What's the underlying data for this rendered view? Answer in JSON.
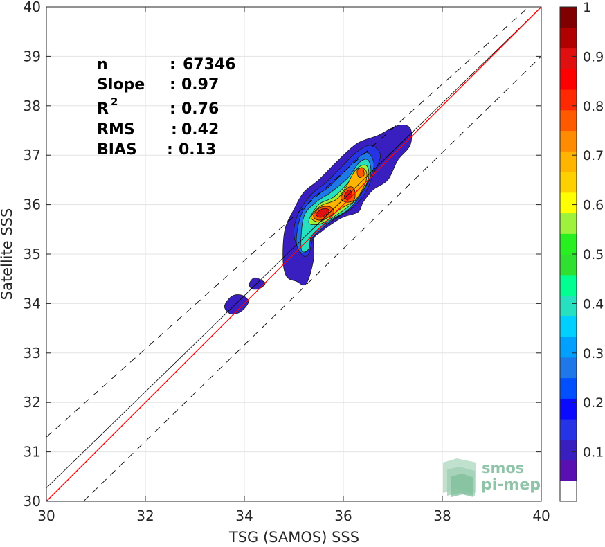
{
  "chart_data": {
    "type": "heatmap",
    "subtype": "filled-contour density scatter",
    "title": "",
    "xlabel": "TSG (SAMOS) SSS",
    "ylabel": "Satellite SSS",
    "xlim": [
      30,
      40
    ],
    "ylim": [
      30,
      40
    ],
    "xticks": [
      "30",
      "32",
      "34",
      "36",
      "38",
      "40"
    ],
    "yticks": [
      "30",
      "31",
      "32",
      "33",
      "34",
      "35",
      "36",
      "37",
      "38",
      "39",
      "40"
    ],
    "grid": true,
    "stats": [
      {
        "label": "n",
        "sep": ":",
        "value": "67346"
      },
      {
        "label": "Slope",
        "sep": ":",
        "value": "0.97"
      },
      {
        "label": "R",
        "sup": "2",
        "sep": ":",
        "value": "0.76"
      },
      {
        "label": "RMS",
        "sep": ":",
        "value": "0.42"
      },
      {
        "label": "BIAS",
        "sep": ":",
        "value": "0.13"
      }
    ],
    "lines": {
      "identity": {
        "color": "#ff0000",
        "x": [
          30,
          40
        ],
        "y": [
          30,
          40
        ]
      },
      "regression": {
        "color": "#000000",
        "x": [
          30,
          40
        ],
        "y": [
          30.27,
          40
        ]
      },
      "upper_bound": {
        "color": "#000000",
        "style": "dashed",
        "x": [
          30,
          39.75
        ],
        "y": [
          31.3,
          40
        ]
      },
      "lower_bound": {
        "color": "#000000",
        "style": "dashed",
        "x": [
          30.75,
          40
        ],
        "y": [
          30,
          39
        ]
      }
    },
    "density_levels": [
      {
        "level": 0.05,
        "color": "#3a1fc0",
        "regions": [
          [
            [
              34.85,
              34.55
            ],
            [
              34.78,
              34.9
            ],
            [
              34.82,
              35.5
            ],
            [
              35.0,
              35.9
            ],
            [
              35.2,
              36.25
            ],
            [
              35.5,
              36.5
            ],
            [
              35.95,
              36.95
            ],
            [
              36.3,
              37.25
            ],
            [
              36.7,
              37.4
            ],
            [
              37.1,
              37.6
            ],
            [
              37.35,
              37.55
            ],
            [
              37.35,
              37.2
            ],
            [
              37.1,
              36.9
            ],
            [
              36.9,
              36.5
            ],
            [
              36.6,
              36.3
            ],
            [
              36.4,
              36.05
            ],
            [
              36.3,
              35.85
            ],
            [
              36.0,
              35.75
            ],
            [
              35.75,
              35.6
            ],
            [
              35.55,
              35.45
            ],
            [
              35.4,
              35.3
            ],
            [
              35.4,
              34.9
            ],
            [
              35.25,
              34.4
            ],
            [
              35.05,
              34.45
            ]
          ],
          [
            [
              33.6,
              33.95
            ],
            [
              33.75,
              34.15
            ],
            [
              33.95,
              34.17
            ],
            [
              34.08,
              34.05
            ],
            [
              34.0,
              33.9
            ],
            [
              33.85,
              33.8
            ],
            [
              33.7,
              33.8
            ]
          ],
          [
            [
              34.1,
              34.4
            ],
            [
              34.2,
              34.52
            ],
            [
              34.35,
              34.47
            ],
            [
              34.42,
              34.4
            ],
            [
              34.3,
              34.3
            ],
            [
              34.15,
              34.3
            ]
          ]
        ]
      },
      {
        "level": 0.15,
        "color": "#2634e6",
        "regions": [
          [
            [
              35.0,
              35.4
            ],
            [
              35.1,
              35.85
            ],
            [
              35.35,
              36.2
            ],
            [
              35.65,
              36.45
            ],
            [
              36.0,
              36.8
            ],
            [
              36.25,
              37.05
            ],
            [
              36.55,
              37.2
            ],
            [
              36.75,
              37.0
            ],
            [
              36.6,
              36.6
            ],
            [
              36.45,
              36.25
            ],
            [
              36.2,
              35.95
            ],
            [
              35.9,
              35.75
            ],
            [
              35.6,
              35.55
            ],
            [
              35.4,
              35.35
            ],
            [
              35.3,
              35.0
            ],
            [
              35.15,
              35.0
            ]
          ]
        ]
      },
      {
        "level": 0.3,
        "color": "#1e78e8",
        "regions": [
          [
            [
              35.05,
              35.3
            ],
            [
              35.15,
              35.8
            ],
            [
              35.4,
              36.15
            ],
            [
              35.7,
              36.35
            ],
            [
              36.05,
              36.7
            ],
            [
              36.3,
              36.95
            ],
            [
              36.5,
              37.05
            ],
            [
              36.62,
              36.8
            ],
            [
              36.5,
              36.45
            ],
            [
              36.3,
              36.15
            ],
            [
              36.1,
              35.9
            ],
            [
              35.8,
              35.7
            ],
            [
              35.55,
              35.5
            ],
            [
              35.35,
              35.3
            ],
            [
              35.25,
              35.05
            ],
            [
              35.12,
              35.05
            ]
          ]
        ]
      },
      {
        "level": 0.4,
        "color": "#26e0c0",
        "regions": [
          [
            [
              35.15,
              35.1
            ],
            [
              35.2,
              35.75
            ],
            [
              35.45,
              36.05
            ],
            [
              35.75,
              36.25
            ],
            [
              36.1,
              36.55
            ],
            [
              36.32,
              36.85
            ],
            [
              36.5,
              36.9
            ],
            [
              36.55,
              36.6
            ],
            [
              36.35,
              36.2
            ],
            [
              36.1,
              35.9
            ],
            [
              35.8,
              35.72
            ],
            [
              35.55,
              35.55
            ],
            [
              35.35,
              35.35
            ],
            [
              35.3,
              35.1
            ]
          ]
        ]
      },
      {
        "level": 0.55,
        "color": "#9ef23c",
        "regions": [
          [
            [
              35.3,
              35.65
            ],
            [
              35.5,
              36.0
            ],
            [
              35.8,
              36.15
            ],
            [
              36.1,
              36.45
            ],
            [
              36.3,
              36.75
            ],
            [
              36.48,
              36.78
            ],
            [
              36.5,
              36.5
            ],
            [
              36.3,
              36.15
            ],
            [
              36.05,
              35.92
            ],
            [
              35.75,
              35.72
            ],
            [
              35.5,
              35.6
            ]
          ]
        ]
      },
      {
        "level": 0.7,
        "color": "#ffb400",
        "regions": [
          [
            [
              35.35,
              35.75
            ],
            [
              35.55,
              35.98
            ],
            [
              35.85,
              36.1
            ],
            [
              36.05,
              36.35
            ],
            [
              36.25,
              36.7
            ],
            [
              36.45,
              36.7
            ],
            [
              36.45,
              36.45
            ],
            [
              36.25,
              36.1
            ],
            [
              36.0,
              35.95
            ],
            [
              35.7,
              35.75
            ],
            [
              35.5,
              35.65
            ]
          ]
        ]
      },
      {
        "level": 0.8,
        "color": "#ff5a00",
        "regions": [
          [
            [
              35.4,
              35.8
            ],
            [
              35.55,
              35.95
            ],
            [
              35.75,
              35.95
            ],
            [
              35.8,
              35.82
            ],
            [
              35.6,
              35.7
            ],
            [
              35.45,
              35.7
            ]
          ],
          [
            [
              35.95,
              36.15
            ],
            [
              36.1,
              36.35
            ],
            [
              36.22,
              36.32
            ],
            [
              36.22,
              36.1
            ],
            [
              36.05,
              36.05
            ]
          ],
          [
            [
              36.28,
              36.68
            ],
            [
              36.38,
              36.75
            ],
            [
              36.42,
              36.6
            ],
            [
              36.32,
              36.55
            ]
          ]
        ]
      },
      {
        "level": 0.9,
        "color": "#e01010",
        "regions": [
          [
            [
              35.45,
              35.82
            ],
            [
              35.6,
              35.92
            ],
            [
              35.72,
              35.88
            ],
            [
              35.6,
              35.76
            ],
            [
              35.5,
              35.75
            ]
          ],
          [
            [
              36.02,
              36.18
            ],
            [
              36.12,
              36.3
            ],
            [
              36.18,
              36.18
            ],
            [
              36.08,
              36.1
            ]
          ]
        ]
      }
    ],
    "colorbar": {
      "ticks": [
        "0.1",
        "0.2",
        "0.3",
        "0.4",
        "0.5",
        "0.6",
        "0.7",
        "0.8",
        "0.9",
        "1"
      ],
      "range": [
        0,
        1
      ],
      "colors": [
        "#ffffff",
        "#5a10b0",
        "#3a1fc0",
        "#2634e6",
        "#0a0aff",
        "#0050ff",
        "#1e78e8",
        "#00a0ff",
        "#00d0ff",
        "#26e0c0",
        "#00ff90",
        "#30e030",
        "#28f020",
        "#9ef23c",
        "#ffff00",
        "#ffd000",
        "#ffb400",
        "#ff8c00",
        "#ff5a00",
        "#ff2800",
        "#ff0000",
        "#e01010",
        "#b00000",
        "#800000"
      ]
    }
  },
  "logo": {
    "line1": "smos",
    "line2": "pi-mep"
  }
}
